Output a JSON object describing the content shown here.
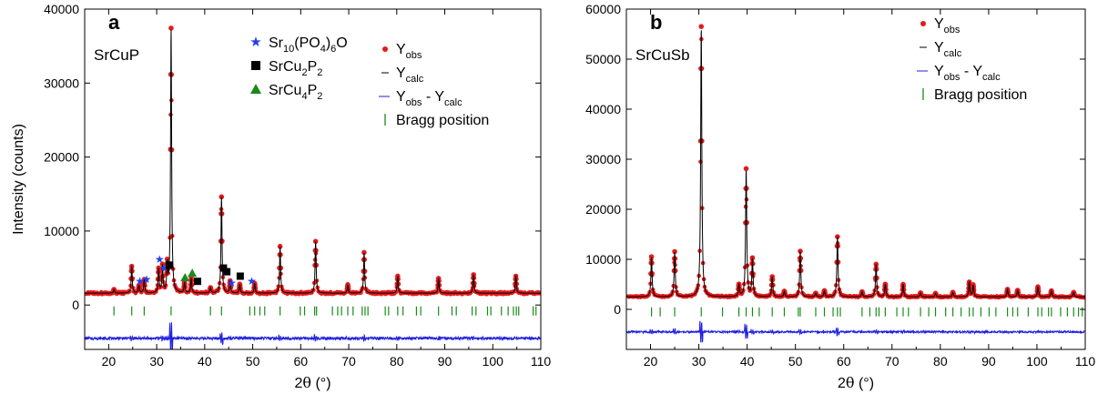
{
  "colors": {
    "observed": "#e41a1c",
    "calculated": "#000000",
    "difference": "#1f1fe0",
    "bragg": "#1a8a1a",
    "phase_star": "#1f3ff0",
    "phase_square": "#000000",
    "phase_triangle": "#1a8a1a"
  },
  "chart_data": [
    {
      "type": "line",
      "panel_label": "a",
      "sample_label": "SrCuP",
      "xlabel_prefix": "2",
      "xlabel_symbol": "θ",
      "xlabel_suffix": " (°)",
      "ylabel": "Intensity (counts)",
      "xlim": [
        15,
        110
      ],
      "ylim": [
        -6000,
        40000
      ],
      "x_ticks": [
        20,
        30,
        40,
        50,
        60,
        70,
        80,
        90,
        100,
        110
      ],
      "y_ticks": [
        0,
        10000,
        20000,
        30000,
        40000
      ],
      "x_tick_labels": [
        "20",
        "30",
        "40",
        "50",
        "60",
        "70",
        "80",
        "90",
        "100",
        "110"
      ],
      "y_tick_labels": [
        "0",
        "10000",
        "20000",
        "30000",
        "40000"
      ],
      "background": 1600,
      "difference_offset": -4500,
      "bragg_level": -800,
      "peaks": [
        {
          "x": 21.1,
          "y": 2100
        },
        {
          "x": 24.8,
          "y": 5200
        },
        {
          "x": 26.3,
          "y": 2600
        },
        {
          "x": 27.4,
          "y": 3400
        },
        {
          "x": 30.4,
          "y": 4800
        },
        {
          "x": 31.2,
          "y": 5200
        },
        {
          "x": 32.2,
          "y": 5200
        },
        {
          "x": 33.0,
          "y": 37300
        },
        {
          "x": 35.8,
          "y": 3000
        },
        {
          "x": 37.2,
          "y": 3600
        },
        {
          "x": 41.2,
          "y": 2300
        },
        {
          "x": 43.5,
          "y": 14600
        },
        {
          "x": 45.3,
          "y": 3200
        },
        {
          "x": 47.3,
          "y": 2800
        },
        {
          "x": 50.4,
          "y": 2900
        },
        {
          "x": 55.7,
          "y": 7900
        },
        {
          "x": 63.1,
          "y": 8600
        },
        {
          "x": 69.8,
          "y": 2700
        },
        {
          "x": 73.2,
          "y": 7100
        },
        {
          "x": 80.2,
          "y": 3900
        },
        {
          "x": 88.7,
          "y": 3600
        },
        {
          "x": 96.0,
          "y": 4100
        },
        {
          "x": 104.8,
          "y": 3900
        }
      ],
      "bragg_positions": [
        21.1,
        24.8,
        27.4,
        33.0,
        41.2,
        43.5,
        49.4,
        50.4,
        51.5,
        52.5,
        55.7,
        59.9,
        60.8,
        62.9,
        63.3,
        66.6,
        67.7,
        68.5,
        69.8,
        70.9,
        72.8,
        73.4,
        74.0,
        77.6,
        78.3,
        80.2,
        81.3,
        84.1,
        85.0,
        88.7,
        91.5,
        92.4,
        95.7,
        96.5,
        98.9,
        99.6,
        101.8,
        103.2,
        104.3,
        104.9,
        105.4,
        108.4,
        109.0
      ],
      "phase_markers": [
        {
          "phase": "star",
          "x": 26.5,
          "y": 3200
        },
        {
          "x": 27.9,
          "y": 3500,
          "phase": "star"
        },
        {
          "phase": "star",
          "x": 30.6,
          "y": 6200
        },
        {
          "phase": "star",
          "x": 31.5,
          "y": 5000
        },
        {
          "phase": "star",
          "x": 45.6,
          "y": 3000
        },
        {
          "phase": "star",
          "x": 49.8,
          "y": 3200
        },
        {
          "phase": "square",
          "x": 32.6,
          "y": 5400
        },
        {
          "phase": "square",
          "x": 38.5,
          "y": 3200
        },
        {
          "phase": "square",
          "x": 43.9,
          "y": 5000
        },
        {
          "phase": "square",
          "x": 44.6,
          "y": 4500
        },
        {
          "phase": "square",
          "x": 47.4,
          "y": 3900
        },
        {
          "phase": "triangle",
          "x": 35.9,
          "y": 3700
        },
        {
          "phase": "triangle",
          "x": 37.4,
          "y": 4300
        }
      ],
      "legend": [
        {
          "kind": "star",
          "base": "Sr",
          "sub1": "10",
          "mid": "(PO",
          "sub2": "4",
          "mid2": ")",
          "sub3": "6",
          "tail": "O"
        },
        {
          "kind": "square",
          "base": "SrCu",
          "sub1": "2",
          "mid": "P",
          "sub2": "2"
        },
        {
          "kind": "triangle",
          "base": "SrCu",
          "sub1": "4",
          "mid": "P",
          "sub2": "2"
        }
      ],
      "series_legend": [
        {
          "kind": "obs",
          "base": "Y",
          "sub": "obs"
        },
        {
          "kind": "calc",
          "base": "Y",
          "sub": "calc"
        },
        {
          "kind": "diff",
          "base": "Y",
          "sub": "obs",
          "mid": " - Y",
          "sub2": "calc"
        },
        {
          "kind": "bragg",
          "base": "Bragg position"
        }
      ]
    },
    {
      "type": "line",
      "panel_label": "b",
      "sample_label": "SrCuSb",
      "xlabel_prefix": "2",
      "xlabel_symbol": "θ",
      "xlabel_suffix": " (°)",
      "ylabel": "",
      "xlim": [
        15,
        110
      ],
      "ylim": [
        -8000,
        60000
      ],
      "x_ticks": [
        20,
        30,
        40,
        50,
        60,
        70,
        80,
        90,
        100,
        110
      ],
      "y_ticks": [
        0,
        10000,
        20000,
        30000,
        40000,
        50000,
        60000
      ],
      "x_tick_labels": [
        "20",
        "30",
        "40",
        "50",
        "60",
        "70",
        "80",
        "90",
        "100",
        "110"
      ],
      "y_tick_labels": [
        "0",
        "10000",
        "20000",
        "30000",
        "40000",
        "50000",
        "60000"
      ],
      "background": 2500,
      "difference_offset": -4500,
      "bragg_level": -500,
      "peaks": [
        {
          "x": 20.2,
          "y": 10500
        },
        {
          "x": 25.0,
          "y": 11500
        },
        {
          "x": 30.5,
          "y": 56500
        },
        {
          "x": 38.3,
          "y": 4800
        },
        {
          "x": 39.8,
          "y": 28000
        },
        {
          "x": 41.1,
          "y": 10000
        },
        {
          "x": 45.2,
          "y": 6500
        },
        {
          "x": 47.7,
          "y": 3600
        },
        {
          "x": 51.0,
          "y": 11600
        },
        {
          "x": 54.2,
          "y": 3200
        },
        {
          "x": 56.0,
          "y": 3700
        },
        {
          "x": 58.7,
          "y": 14500
        },
        {
          "x": 63.8,
          "y": 3500
        },
        {
          "x": 66.7,
          "y": 9000
        },
        {
          "x": 68.6,
          "y": 5000
        },
        {
          "x": 72.3,
          "y": 5000
        },
        {
          "x": 75.9,
          "y": 3300
        },
        {
          "x": 79.0,
          "y": 3200
        },
        {
          "x": 82.6,
          "y": 3400
        },
        {
          "x": 86.0,
          "y": 5400
        },
        {
          "x": 86.8,
          "y": 4800
        },
        {
          "x": 93.9,
          "y": 4000
        },
        {
          "x": 96.0,
          "y": 3800
        },
        {
          "x": 100.2,
          "y": 4500
        },
        {
          "x": 103.0,
          "y": 3700
        },
        {
          "x": 107.6,
          "y": 3400
        }
      ],
      "bragg_positions": [
        20.2,
        22.0,
        25.0,
        30.5,
        34.9,
        38.3,
        39.8,
        41.1,
        42.5,
        45.2,
        47.7,
        50.6,
        51.0,
        54.2,
        56.0,
        57.8,
        58.7,
        59.3,
        63.8,
        65.4,
        66.7,
        67.3,
        68.6,
        71.0,
        72.3,
        73.4,
        75.9,
        77.6,
        79.0,
        81.1,
        82.6,
        84.3,
        86.0,
        86.8,
        88.4,
        90.1,
        91.5,
        93.9,
        95.0,
        96.0,
        98.2,
        100.2,
        101.0,
        102.4,
        103.0,
        104.9,
        106.3,
        107.6,
        108.6,
        109.4
      ],
      "series_legend": [
        {
          "kind": "obs",
          "base": "Y",
          "sub": "obs"
        },
        {
          "kind": "calc",
          "base": "Y",
          "sub": "calc"
        },
        {
          "kind": "diff",
          "base": "Y",
          "sub": "obs",
          "mid": " - Y",
          "sub2": "calc"
        },
        {
          "kind": "bragg",
          "base": "Bragg position"
        }
      ]
    }
  ]
}
